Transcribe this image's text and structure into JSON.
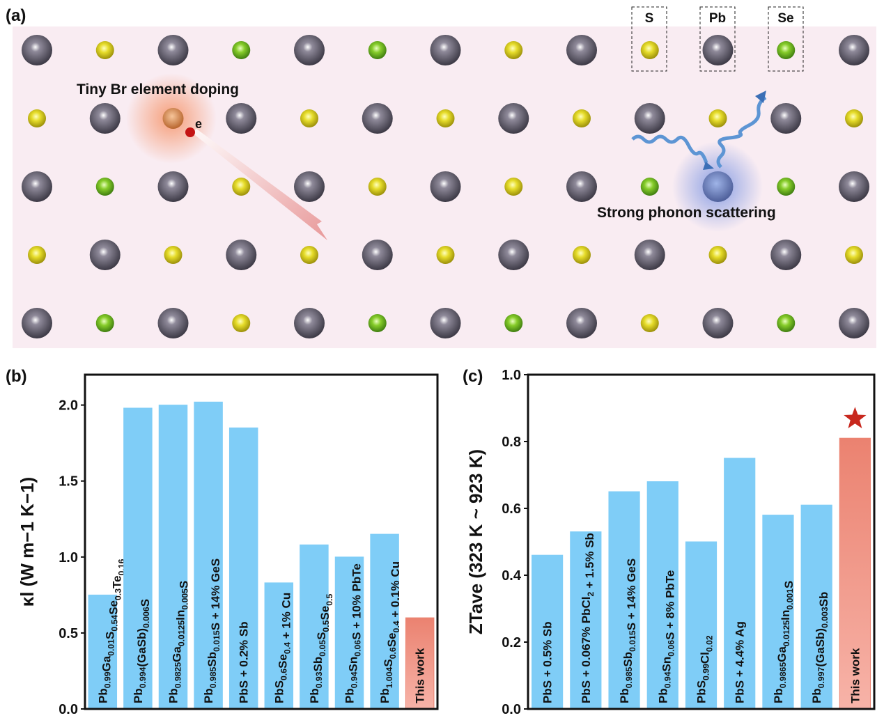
{
  "diagram": {
    "panel_label": "(a)",
    "legend": [
      "S",
      "Pb",
      "Se"
    ],
    "doping_label": "Tiny Br element doping",
    "electron_label": "e",
    "scattering_label": "Strong phonon scattering"
  },
  "chart_data": [
    {
      "type": "bar",
      "panel_label": "(b)",
      "y_label": "κl (W m−1 K−1)",
      "categories": [
        "Pb0.99Ga0.01S0.54Se0.3Te0.16",
        "Pb0.994(GaSb)0.006S",
        "Pb0.9825Ga0.0125In0.005S",
        "Pb0.985Sb0.015S + 14% GeS",
        "PbS + 0.2% Sb",
        "PbS0.6Se0.4 + 1% Cu",
        "Pb0.93Sb0.05S0.5Se0.5",
        "Pb0.94Sn0.06S + 10% PbTe",
        "Pb1.004S0.6Se0.4 + 0.1% Cu",
        "This work"
      ],
      "values": [
        0.75,
        1.98,
        2.0,
        2.02,
        1.85,
        0.83,
        1.08,
        1.0,
        1.15,
        0.6
      ],
      "colors": [
        "#7fcdf7",
        "#7fcdf7",
        "#7fcdf7",
        "#7fcdf7",
        "#7fcdf7",
        "#7fcdf7",
        "#7fcdf7",
        "#7fcdf7",
        "#7fcdf7",
        "#eb8270"
      ],
      "ylim": [
        0,
        2.2
      ],
      "yticks": [
        {
          "value": 0,
          "label": "0.0"
        },
        0.5,
        {
          "value": 1,
          "label": "1.0"
        },
        1.5,
        {
          "value": 2,
          "label": "2.0"
        }
      ]
    },
    {
      "type": "bar",
      "panel_label": "(c)",
      "y_label": "ZTave (323 K ~ 923 K)",
      "categories": [
        "PbS + 0.5% Sb",
        "PbS + 0.067% PbCl2 + 1.5% Sb",
        "Pb0.985Sb0.015S + 14% GeS",
        "Pb0.94Sn0.06S + 8% PbTe",
        "PbS0.99Cl0.02",
        "PbS + 4.4% Ag",
        "Pb0.9865Ga0.0125In0.001S",
        "Pb0.997(GaSb)0.003Sb",
        "This work"
      ],
      "values": [
        0.46,
        0.53,
        0.65,
        0.68,
        0.5,
        0.75,
        0.58,
        0.61,
        0.81
      ],
      "colors": [
        "#7fcdf7",
        "#7fcdf7",
        "#7fcdf7",
        "#7fcdf7",
        "#7fcdf7",
        "#7fcdf7",
        "#7fcdf7",
        "#7fcdf7",
        "#eb8270"
      ],
      "ylim": [
        0,
        1.0
      ],
      "yticks": [
        {
          "value": 0,
          "label": "0.0"
        },
        0.2,
        0.4,
        0.6,
        0.8,
        {
          "value": 1,
          "label": "1.0"
        }
      ]
    }
  ]
}
